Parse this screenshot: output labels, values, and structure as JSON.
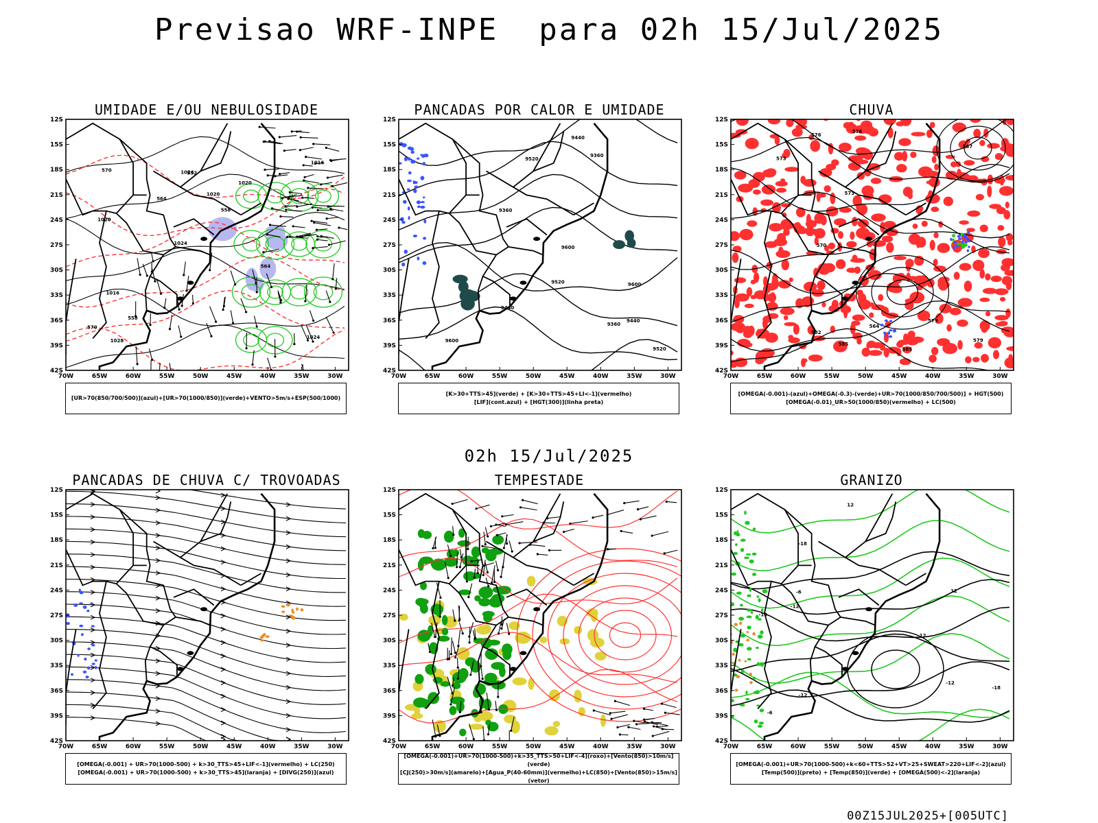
{
  "title": "Previsao WRF-INPE  para 02h 15/Jul/2025",
  "mid_date": "02h 15/Jul/2025",
  "stamp": "00Z15JUL2025+[005UTC]",
  "lat_ticks": [
    "12S",
    "15S",
    "18S",
    "21S",
    "24S",
    "27S",
    "30S",
    "33S",
    "36S",
    "39S",
    "42S"
  ],
  "lon_ticks": [
    "70W",
    "65W",
    "60W",
    "55W",
    "50W",
    "45W",
    "40W",
    "35W",
    "30W"
  ],
  "colors": {
    "red": "#ff3030",
    "green": "#20c820",
    "blue": "#3a55ff",
    "lavender": "#b8b8f0",
    "darkteal": "#1f4a4a",
    "orange": "#f08a24",
    "yellow": "#e0d23a",
    "darkgreen": "#10a010"
  },
  "panels": [
    {
      "id": "umidade",
      "title": "UMIDADE E/OU NEBULOSIDADE",
      "legend": [
        "[UR>70(850/700/500)](azul)+[UR>70(1000/850)](verde)+VENTO>5m/s+ESP(500/1000)"
      ],
      "contour_labels": [
        "1024",
        "1020",
        "1016",
        "1024",
        "1020",
        "1028",
        "1024",
        "1020",
        "1016",
        "564",
        "570",
        "558",
        "552",
        "558",
        "564",
        "570"
      ]
    },
    {
      "id": "pancadas_calor",
      "title": "PANCADAS POR CALOR E UMIDADE",
      "legend": [
        "[K>30+TTS>45](verde) + [K>30+TTS>45+LI<-1](vermelho)",
        "[LIF](cont.azul) + [HGT(300)](linha preta)"
      ],
      "contour_labels": [
        "9600",
        "9600",
        "9600",
        "9520",
        "9520",
        "9440",
        "9440",
        "9360",
        "9360",
        "9440",
        "9520",
        "9360"
      ]
    },
    {
      "id": "chuva",
      "title": "CHUVA",
      "legend": [
        "[OMEGA(-0.001)-(azul)+OMEGA(-0.3)-(verde)+UR>70(1000/850/700/500)] + HGT(500)",
        "[OMEGA(-0.01)_UR>50(1000/850)(vermelho) + LC(500)"
      ],
      "contour_labels": [
        "585",
        "585",
        "582",
        "579",
        "576",
        "573",
        "570",
        "579",
        "576",
        "573",
        "567",
        "564"
      ]
    },
    {
      "id": "pancadas_trovoadas",
      "title": "PANCADAS DE CHUVA C/ TROVOADAS",
      "legend": [
        "[OMEGA(-0.001) + UR>70(1000-500) + k>30_TTS>45+LIF<-1](vermelho) + LC(250)",
        "[OMEGA(-0.001) + UR>70(1000-500) + k>30_TTS>45](laranja) + [DIVG(250)](azul)"
      ],
      "contour_labels": []
    },
    {
      "id": "tempestade",
      "title": "TEMPESTADE",
      "legend": [
        "[OMEGA(-0.001)+UR>70(1000-500)+k>35_TTS>50+LIF<-4](roxo)+[Vento(850)>10m/s](verde)",
        "[CJ(250)>30m/s](amarelo)+[Agua_P(40-60mm)](vermelho)+LC(850)+[Vento(850)>15m/s](vetor)"
      ],
      "contour_labels": []
    },
    {
      "id": "granizo",
      "title": "GRANIZO",
      "legend": [
        "[OMEGA(-0.001)+UR>70(1000-500)+k<60+TTS>52+VT>25+SWEAT>220+LIF<-2](azul)",
        "[Temp(500)](preto) + [Temp(850)](verde) + [OMEGA(500)<-2](laranja)"
      ],
      "contour_labels": [
        "-6",
        "-12",
        "-12",
        "-18",
        "-18",
        "-18",
        "-12",
        "-6",
        "12",
        "12",
        "-12"
      ]
    }
  ]
}
